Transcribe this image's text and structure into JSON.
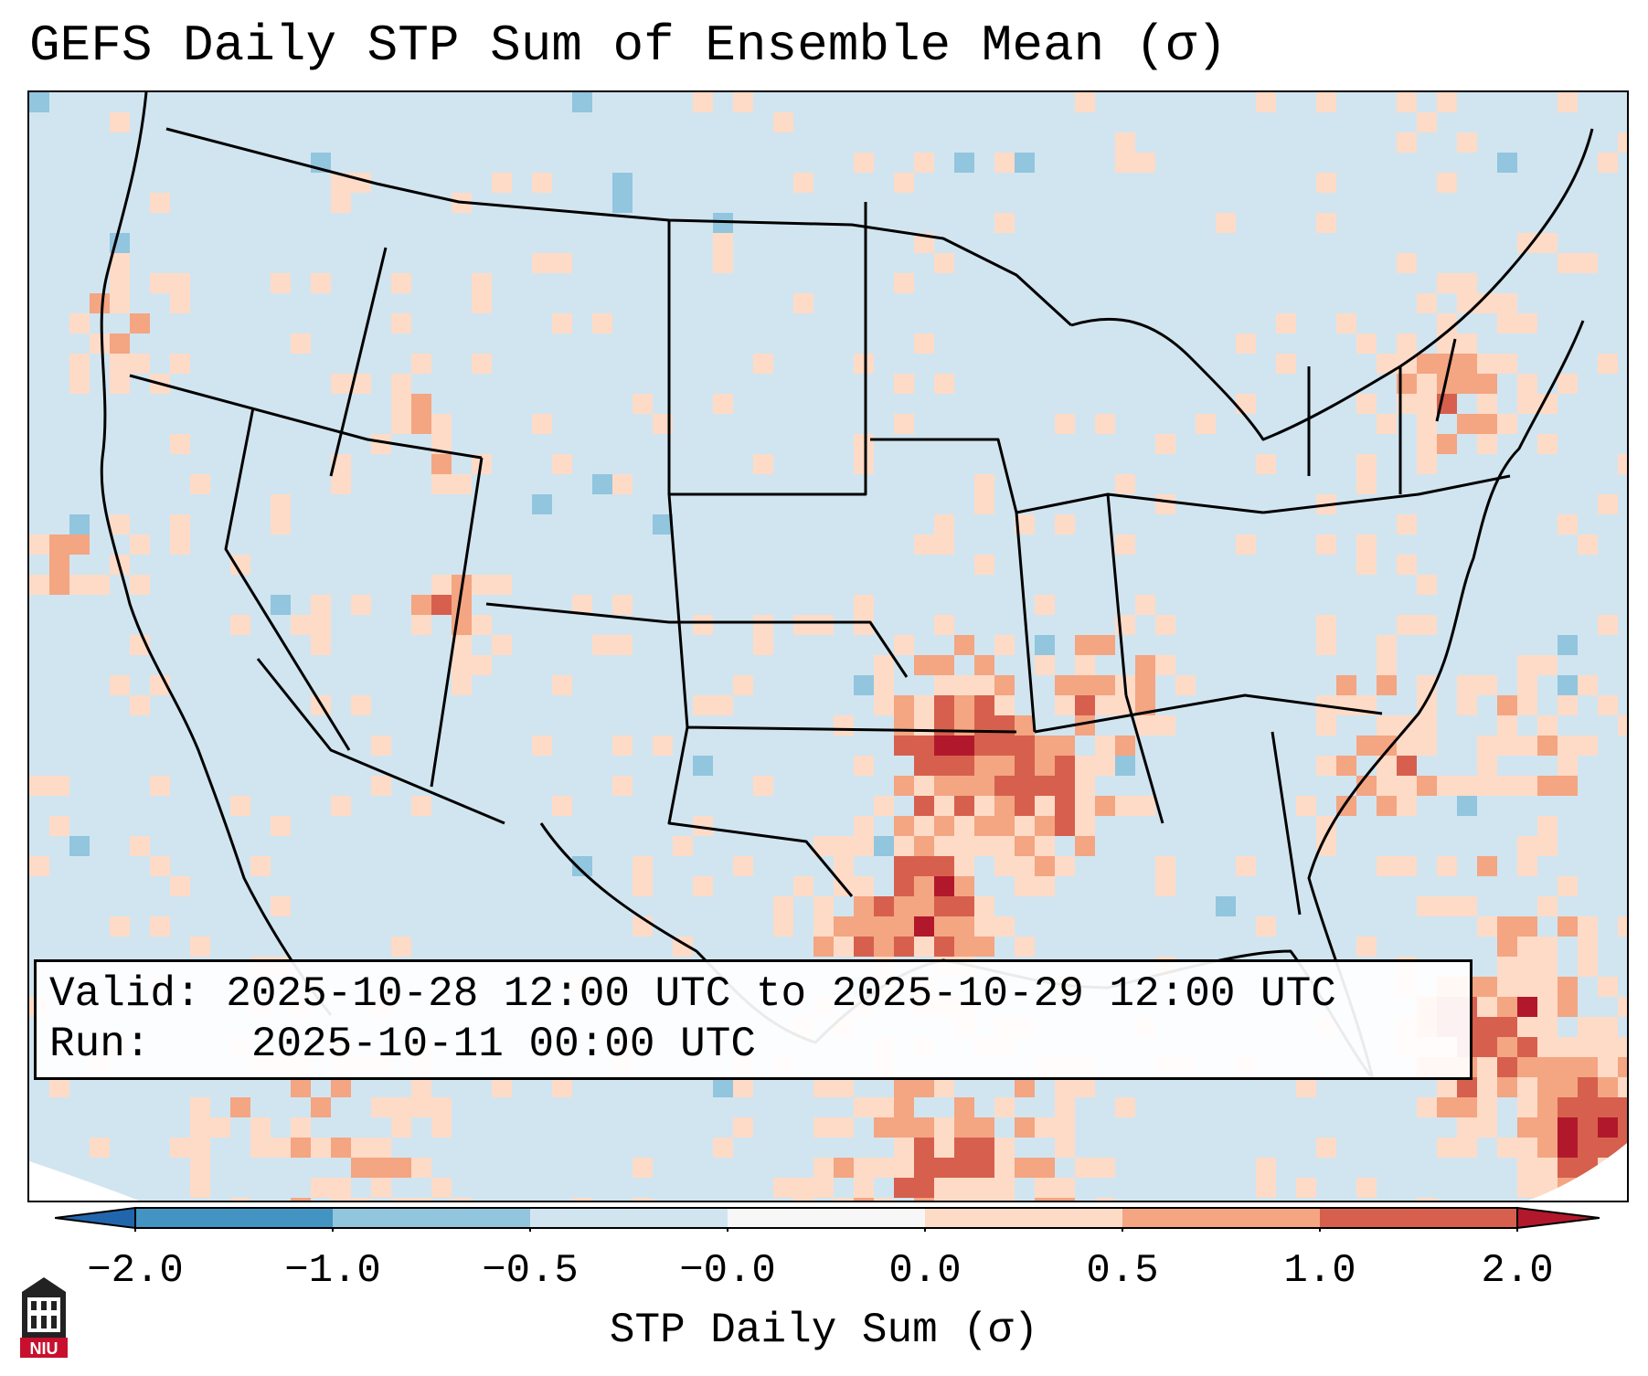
{
  "title": "GEFS Daily STP Sum of Ensemble Mean (σ)",
  "info": {
    "valid_label": "Valid:",
    "valid_value": "2025-10-28 12:00 UTC to 2025-10-29 12:00 UTC",
    "run_label": "Run:",
    "run_value": "2025-10-11 00:00 UTC"
  },
  "colorbar": {
    "label": "STP Daily Sum (σ)",
    "ticks": [
      "−2.0",
      "−1.0",
      "−0.5",
      "−0.0",
      "0.0",
      "0.5",
      "1.0",
      "2.0"
    ],
    "bin_colors": [
      "#4393c3",
      "#92c5de",
      "#d1e5f0",
      "#f7f7f7",
      "#fddbc7",
      "#f4a582",
      "#d6604d"
    ],
    "under_color": "#2166ac",
    "over_color": "#b2182b",
    "extend": "both",
    "orientation": "horizontal"
  },
  "logo": {
    "text": "NIU",
    "icon": "university-seal-icon"
  },
  "map": {
    "projection": "lambert-conformal",
    "region": "CONUS",
    "background_color": "#d1e5f0",
    "signal_color_light": "#fddbc7",
    "signal_color_medium": "#f4a582",
    "signal_color_strong": "#d6604d",
    "signal_color_extreme": "#b2182b",
    "negative_color": "#92c5de"
  }
}
